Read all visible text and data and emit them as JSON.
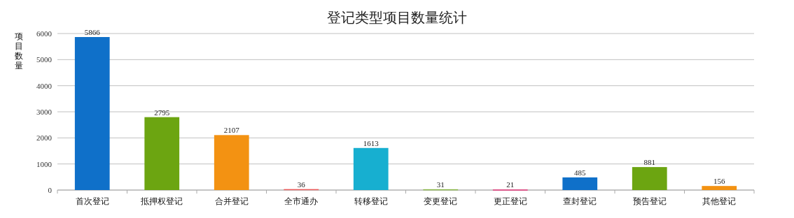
{
  "chart_data": {
    "type": "bar",
    "title": "登记类型项目数量统计",
    "ylabel": "项目数量",
    "categories": [
      "首次登记",
      "抵押权登记",
      "合并登记",
      "全市通办",
      "转移登记",
      "变更登记",
      "更正登记",
      "查封登记",
      "预告登记",
      "其他登记"
    ],
    "values": [
      5866,
      2795,
      2107,
      36,
      1613,
      31,
      21,
      485,
      881,
      156
    ],
    "colors": [
      "#0f70c9",
      "#6ca511",
      "#f39212",
      "#ec5a5a",
      "#17afd0",
      "#8bb84a",
      "#e3377a",
      "#0f70c9",
      "#6ca511",
      "#f39212"
    ],
    "ylim": [
      0,
      6000
    ],
    "yticks": [
      0,
      1000,
      2000,
      3000,
      4000,
      5000,
      6000
    ],
    "grid": "y",
    "data_labels": true
  }
}
